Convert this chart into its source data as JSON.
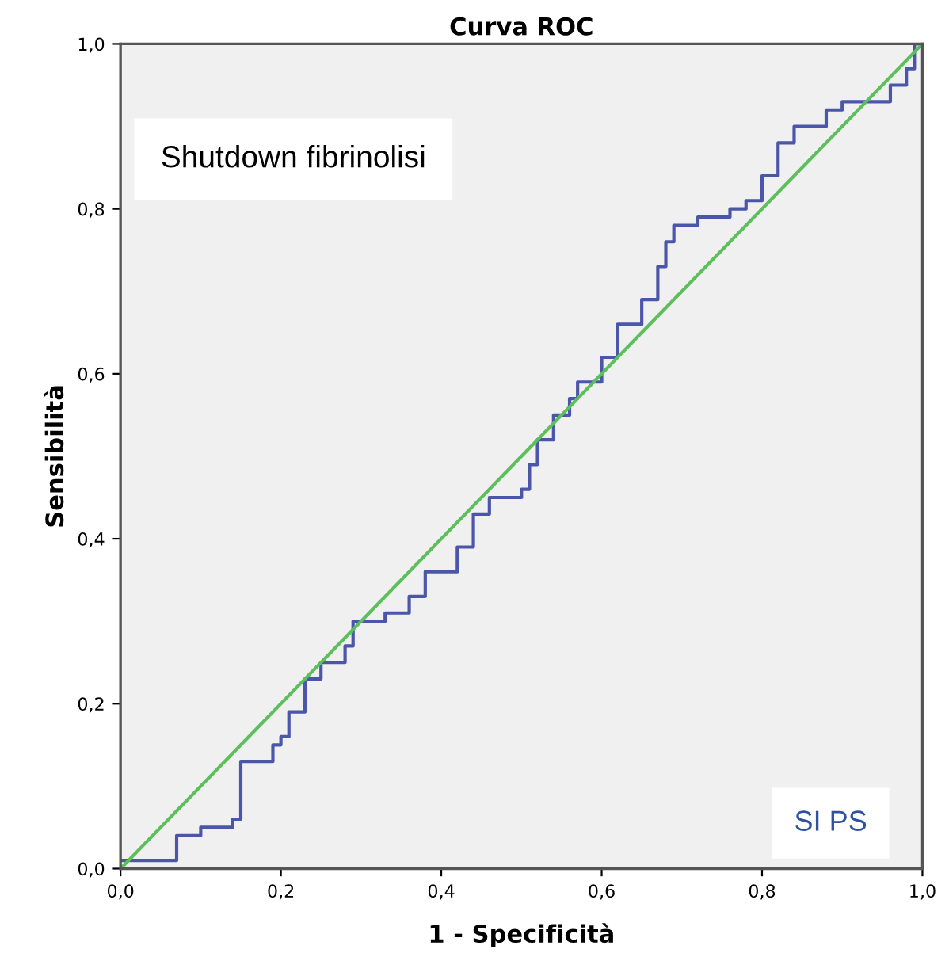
{
  "chart_data": {
    "type": "line",
    "title": "Curva ROC",
    "xlabel": "1 - Specificità",
    "ylabel": "Sensibilità",
    "annotations": [
      "Shutdown fibrinolisi",
      "SI PS"
    ],
    "xlim": [
      0,
      1
    ],
    "ylim": [
      0,
      1
    ],
    "xticks": [
      {
        "value": 0,
        "label": "0,0"
      },
      {
        "value": 0.2,
        "label": "0,2"
      },
      {
        "value": 0.4,
        "label": "0,4"
      },
      {
        "value": 0.6,
        "label": "0,6"
      },
      {
        "value": 0.8,
        "label": "0,8"
      },
      {
        "value": 1,
        "label": "1,0"
      }
    ],
    "yticks": [
      {
        "value": 0,
        "label": "0,0"
      },
      {
        "value": 0.2,
        "label": "0,2"
      },
      {
        "value": 0.4,
        "label": "0,4"
      },
      {
        "value": 0.6,
        "label": "0,6"
      },
      {
        "value": 0.8,
        "label": "0,8"
      },
      {
        "value": 1,
        "label": "1,0"
      }
    ],
    "grid": false,
    "legend": false,
    "series": [
      {
        "type": "step",
        "color": "#4b56a8",
        "x": [
          0,
          0.07,
          0.07,
          0.1,
          0.14,
          0.15,
          0.15,
          0.18,
          0.19,
          0.2,
          0.21,
          0.23,
          0.25,
          0.28,
          0.29,
          0.33,
          0.35,
          0.36,
          0.38,
          0.42,
          0.44,
          0.46,
          0.5,
          0.51,
          0.52,
          0.54,
          0.56,
          0.57,
          0.6,
          0.6,
          0.62,
          0.62,
          0.65,
          0.67,
          0.68,
          0.69,
          0.72,
          0.76,
          0.78,
          0.8,
          0.82,
          0.84,
          0.88,
          0.9,
          0.93,
          0.96,
          0.98,
          0.99,
          1
        ],
        "values": [
          0.01,
          0.01,
          0.04,
          0.05,
          0.06,
          0.08,
          0.13,
          0.13,
          0.15,
          0.16,
          0.19,
          0.23,
          0.25,
          0.27,
          0.3,
          0.31,
          0.31,
          0.33,
          0.36,
          0.39,
          0.43,
          0.45,
          0.46,
          0.49,
          0.52,
          0.55,
          0.57,
          0.59,
          0.6,
          0.62,
          0.62,
          0.66,
          0.69,
          0.73,
          0.76,
          0.78,
          0.79,
          0.8,
          0.81,
          0.84,
          0.88,
          0.9,
          0.92,
          0.93,
          0.93,
          0.95,
          0.97,
          1,
          1
        ]
      },
      {
        "color": "#5cbf5c",
        "x": [
          0,
          1
        ],
        "values": [
          0,
          1
        ]
      }
    ]
  }
}
